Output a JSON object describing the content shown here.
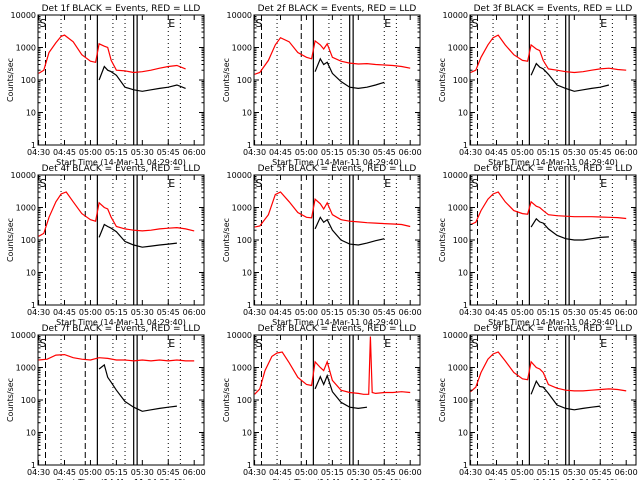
{
  "chart_data": [
    {
      "type": "line",
      "title": "Det 1f BLACK = Events, RED = LLD",
      "xlabel": "Start Time (14-Mar-11 04:29:40)",
      "ylabel": "Counts/sec",
      "x_ticks": [
        "04:30",
        "04:45",
        "05:00",
        "05:15",
        "05:30",
        "05:45",
        "06:00"
      ],
      "y_ticks": [
        "1",
        "10",
        "100",
        "1000",
        "10000"
      ],
      "ylim": [
        1,
        10000
      ],
      "y_scale": "log",
      "markers": [
        "S",
        "E"
      ],
      "series": [
        {
          "color": "#ff0000",
          "x": [
            "04:30",
            "04:33",
            "04:36",
            "04:40",
            "04:43",
            "04:45",
            "04:50",
            "04:55",
            "05:00",
            "05:03",
            "05:05",
            "05:08",
            "05:10",
            "05:12",
            "05:15",
            "05:20",
            "05:25",
            "05:30",
            "05:35",
            "05:40",
            "05:45",
            "05:50",
            "05:55"
          ],
          "y": [
            160,
            200,
            700,
            1400,
            2200,
            2400,
            1500,
            600,
            380,
            350,
            1300,
            1100,
            1000,
            400,
            200,
            190,
            170,
            180,
            200,
            230,
            260,
            280,
            220
          ]
        },
        {
          "color": "#000000",
          "x": [
            "05:05",
            "05:08",
            "05:10",
            "05:12",
            "05:15",
            "05:20",
            "05:25",
            "05:30",
            "05:35",
            "05:40",
            "05:45",
            "05:50",
            "05:55"
          ],
          "y": [
            100,
            260,
            200,
            180,
            140,
            60,
            50,
            45,
            50,
            55,
            60,
            70,
            55
          ]
        }
      ]
    },
    {
      "type": "line",
      "title": "Det 2f BLACK = Events, RED = LLD",
      "xlabel": "Start Time (14-Mar-11 04:29:40)",
      "ylabel": "Counts/sec",
      "x_ticks": [
        "04:30",
        "04:45",
        "05:00",
        "05:15",
        "05:30",
        "05:45",
        "06:00"
      ],
      "y_ticks": [
        "1",
        "10",
        "100",
        "1000",
        "10000"
      ],
      "ylim": [
        1,
        10000
      ],
      "y_scale": "log",
      "markers": [
        "S",
        "E"
      ],
      "series": [
        {
          "color": "#ff0000",
          "x": [
            "04:30",
            "04:33",
            "04:38",
            "04:42",
            "04:45",
            "04:50",
            "04:55",
            "05:00",
            "05:03",
            "05:05",
            "05:08",
            "05:10",
            "05:12",
            "05:15",
            "05:20",
            "05:25",
            "05:30",
            "05:35",
            "05:40",
            "05:45",
            "05:50",
            "05:55",
            "06:00"
          ],
          "y": [
            150,
            170,
            400,
            1200,
            2000,
            1500,
            700,
            500,
            450,
            1600,
            1200,
            900,
            1300,
            500,
            380,
            330,
            310,
            320,
            300,
            290,
            280,
            260,
            230
          ]
        },
        {
          "color": "#000000",
          "x": [
            "05:05",
            "05:08",
            "05:10",
            "05:12",
            "05:15",
            "05:20",
            "05:25",
            "05:30",
            "05:35",
            "05:40",
            "05:45"
          ],
          "y": [
            180,
            450,
            300,
            350,
            160,
            90,
            60,
            55,
            60,
            70,
            85
          ]
        }
      ]
    },
    {
      "type": "line",
      "title": "Det 3f BLACK = Events, RED = LLD",
      "xlabel": "Start Time (14-Mar-11 04:29:40)",
      "ylabel": "Counts/sec",
      "x_ticks": [
        "04:30",
        "04:45",
        "05:00",
        "05:15",
        "05:30",
        "05:45",
        "06:00"
      ],
      "y_ticks": [
        "1",
        "10",
        "100",
        "1000",
        "10000"
      ],
      "ylim": [
        1,
        10000
      ],
      "y_scale": "log",
      "markers": [
        "S",
        "E"
      ],
      "series": [
        {
          "color": "#ff0000",
          "x": [
            "04:30",
            "04:33",
            "04:36",
            "04:40",
            "04:43",
            "04:46",
            "04:50",
            "04:55",
            "05:00",
            "05:03",
            "05:05",
            "05:08",
            "05:10",
            "05:12",
            "05:15",
            "05:20",
            "05:25",
            "05:30",
            "05:35",
            "05:40",
            "05:45",
            "05:50",
            "05:55",
            "06:00"
          ],
          "y": [
            170,
            200,
            500,
            1200,
            2000,
            2400,
            1200,
            600,
            400,
            380,
            1200,
            900,
            800,
            400,
            220,
            200,
            180,
            170,
            180,
            200,
            220,
            230,
            210,
            200
          ]
        },
        {
          "color": "#000000",
          "x": [
            "05:05",
            "05:08",
            "05:10",
            "05:12",
            "05:15",
            "05:20",
            "05:25",
            "05:30",
            "05:35",
            "05:40",
            "05:45",
            "05:50"
          ],
          "y": [
            140,
            320,
            250,
            220,
            150,
            70,
            55,
            45,
            50,
            55,
            60,
            70
          ]
        }
      ]
    },
    {
      "type": "line",
      "title": "Det 4f BLACK = Events, RED = LLD",
      "xlabel": "Start Time (14-Mar-11 04:29:40)",
      "ylabel": "Counts/sec",
      "x_ticks": [
        "04:30",
        "04:45",
        "05:00",
        "05:15",
        "05:30",
        "05:45",
        "06:00"
      ],
      "y_ticks": [
        "1",
        "10",
        "100",
        "1000",
        "10000"
      ],
      "ylim": [
        1,
        10000
      ],
      "y_scale": "log",
      "markers": [
        "S",
        "E"
      ],
      "series": [
        {
          "color": "#ff0000",
          "x": [
            "04:30",
            "04:33",
            "04:36",
            "04:40",
            "04:43",
            "04:46",
            "04:50",
            "04:55",
            "05:00",
            "05:03",
            "05:05",
            "05:08",
            "05:10",
            "05:12",
            "05:15",
            "05:20",
            "05:25",
            "05:30",
            "05:35",
            "05:40",
            "05:45",
            "05:50",
            "05:55",
            "06:00"
          ],
          "y": [
            130,
            160,
            500,
            1500,
            2600,
            3000,
            1500,
            650,
            420,
            380,
            1400,
            1000,
            900,
            500,
            260,
            220,
            200,
            190,
            200,
            220,
            230,
            240,
            220,
            190
          ]
        },
        {
          "color": "#000000",
          "x": [
            "05:05",
            "05:08",
            "05:10",
            "05:12",
            "05:15",
            "05:20",
            "05:25",
            "05:30",
            "05:35",
            "05:40",
            "05:45",
            "05:50"
          ],
          "y": [
            120,
            300,
            260,
            230,
            180,
            90,
            70,
            60,
            65,
            70,
            75,
            80
          ]
        }
      ]
    },
    {
      "type": "line",
      "title": "Det 5f BLACK = Events, RED = LLD",
      "xlabel": "Start Time (14-Mar-11 04:29:40)",
      "ylabel": "Counts/sec",
      "x_ticks": [
        "04:30",
        "04:45",
        "05:00",
        "05:15",
        "05:30",
        "05:45",
        "06:00"
      ],
      "y_ticks": [
        "1",
        "10",
        "100",
        "1000",
        "10000"
      ],
      "ylim": [
        1,
        10000
      ],
      "y_scale": "log",
      "markers": [
        "S",
        "E"
      ],
      "series": [
        {
          "color": "#ff0000",
          "x": [
            "04:30",
            "04:33",
            "04:38",
            "04:42",
            "04:45",
            "04:50",
            "04:55",
            "05:00",
            "05:03",
            "05:05",
            "05:08",
            "05:10",
            "05:12",
            "05:15",
            "05:20",
            "05:25",
            "05:30",
            "05:35",
            "05:40",
            "05:45",
            "05:50",
            "05:55",
            "06:00"
          ],
          "y": [
            250,
            270,
            600,
            2500,
            3000,
            1500,
            700,
            500,
            480,
            1800,
            1300,
            900,
            1400,
            600,
            420,
            380,
            360,
            340,
            330,
            320,
            310,
            300,
            260
          ]
        },
        {
          "color": "#000000",
          "x": [
            "05:05",
            "05:08",
            "05:10",
            "05:12",
            "05:15",
            "05:20",
            "05:25",
            "05:30",
            "05:35",
            "05:40",
            "05:45"
          ],
          "y": [
            220,
            500,
            350,
            420,
            200,
            100,
            75,
            70,
            80,
            95,
            110
          ]
        }
      ]
    },
    {
      "type": "line",
      "title": "Det 6f BLACK = Events, RED = LLD",
      "xlabel": "Start Time (14-Mar-11 04:29:40)",
      "ylabel": "Counts/sec",
      "x_ticks": [
        "04:30",
        "04:45",
        "05:00",
        "05:15",
        "05:30",
        "05:45",
        "06:00"
      ],
      "y_ticks": [
        "1",
        "10",
        "100",
        "1000",
        "10000"
      ],
      "ylim": [
        1,
        10000
      ],
      "y_scale": "log",
      "markers": [
        "S",
        "E"
      ],
      "series": [
        {
          "color": "#ff0000",
          "x": [
            "04:30",
            "04:33",
            "04:36",
            "04:40",
            "04:43",
            "04:46",
            "04:50",
            "04:55",
            "05:00",
            "05:03",
            "05:05",
            "05:08",
            "05:10",
            "05:12",
            "05:15",
            "05:20",
            "05:25",
            "05:30",
            "05:35",
            "05:40",
            "05:45",
            "05:50",
            "05:55",
            "06:00"
          ],
          "y": [
            300,
            350,
            800,
            1800,
            2600,
            3000,
            1500,
            800,
            650,
            620,
            1500,
            1100,
            1000,
            800,
            600,
            560,
            540,
            520,
            520,
            520,
            510,
            500,
            490,
            460
          ]
        },
        {
          "color": "#000000",
          "x": [
            "05:05",
            "05:08",
            "05:10",
            "05:12",
            "05:15",
            "05:20",
            "05:25",
            "05:30",
            "05:35",
            "05:40",
            "05:45",
            "05:50"
          ],
          "y": [
            250,
            450,
            360,
            330,
            220,
            140,
            110,
            100,
            100,
            110,
            120,
            125
          ]
        }
      ]
    },
    {
      "type": "line",
      "title": "Det 7f BLACK = Events, RED = LLD",
      "xlabel": "Start Time (14-Mar-11 04:29:40)",
      "ylabel": "Counts/sec",
      "x_ticks": [
        "04:30",
        "04:45",
        "05:00",
        "05:15",
        "05:30",
        "05:45",
        "06:00"
      ],
      "y_ticks": [
        "1",
        "10",
        "100",
        "1000",
        "10000"
      ],
      "ylim": [
        1,
        10000
      ],
      "y_scale": "log",
      "markers": [
        "S",
        "E"
      ],
      "series": [
        {
          "color": "#ff0000",
          "x": [
            "04:30",
            "04:35",
            "04:40",
            "04:45",
            "04:50",
            "04:55",
            "05:00",
            "05:05",
            "05:10",
            "05:15",
            "05:20",
            "05:25",
            "05:30",
            "05:35",
            "05:40",
            "05:45",
            "05:50",
            "05:55",
            "06:00"
          ],
          "y": [
            1700,
            1800,
            2400,
            2500,
            2000,
            1800,
            1700,
            2000,
            1900,
            1700,
            1700,
            1600,
            1700,
            1600,
            1700,
            1600,
            1700,
            1600,
            1600
          ]
        },
        {
          "color": "#000000",
          "x": [
            "05:05",
            "05:08",
            "05:10",
            "05:12",
            "05:15",
            "05:20",
            "05:25",
            "05:30",
            "05:35",
            "05:40",
            "05:45",
            "05:50"
          ],
          "y": [
            900,
            1200,
            500,
            350,
            200,
            90,
            60,
            45,
            50,
            55,
            60,
            65
          ]
        }
      ]
    },
    {
      "type": "line",
      "title": "Det 8f BLACK = Events, RED = LLD",
      "xlabel": "Start Time (14-Mar-11 04:29:40)",
      "ylabel": "Counts/sec",
      "x_ticks": [
        "04:30",
        "04:45",
        "05:00",
        "05:15",
        "05:30",
        "05:45",
        "06:00"
      ],
      "y_ticks": [
        "1",
        "10",
        "100",
        "1000",
        "10000"
      ],
      "ylim": [
        1,
        10000
      ],
      "y_scale": "log",
      "markers": [
        "S",
        "E"
      ],
      "series": [
        {
          "color": "#ff0000",
          "x": [
            "04:30",
            "04:33",
            "04:36",
            "04:40",
            "04:43",
            "04:46",
            "04:50",
            "04:55",
            "05:00",
            "05:03",
            "05:05",
            "05:08",
            "05:10",
            "05:12",
            "05:15",
            "05:20",
            "05:25",
            "05:30",
            "05:33",
            "05:36",
            "05:37",
            "05:38",
            "05:40",
            "05:45",
            "05:50",
            "05:55",
            "06:00"
          ],
          "y": [
            150,
            220,
            800,
            2200,
            2800,
            3000,
            1400,
            500,
            300,
            280,
            1500,
            1000,
            800,
            1500,
            400,
            200,
            170,
            160,
            150,
            150,
            9000,
            170,
            160,
            170,
            170,
            180,
            170
          ]
        },
        {
          "color": "#000000",
          "x": [
            "05:05",
            "05:08",
            "05:10",
            "05:12",
            "05:15",
            "05:20",
            "05:25",
            "05:30",
            "05:35"
          ],
          "y": [
            220,
            520,
            300,
            560,
            180,
            85,
            60,
            55,
            60
          ]
        }
      ]
    },
    {
      "type": "line",
      "title": "Det 9f BLACK = Events, RED = LLD",
      "xlabel": "Start Time (14-Mar-11 04:29:40)",
      "ylabel": "Counts/sec",
      "x_ticks": [
        "04:30",
        "04:45",
        "05:00",
        "05:15",
        "05:30",
        "05:45",
        "06:00"
      ],
      "y_ticks": [
        "1",
        "10",
        "100",
        "1000",
        "10000"
      ],
      "ylim": [
        1,
        10000
      ],
      "y_scale": "log",
      "markers": [
        "S",
        "E"
      ],
      "series": [
        {
          "color": "#ff0000",
          "x": [
            "04:30",
            "04:33",
            "04:36",
            "04:40",
            "04:43",
            "04:46",
            "04:50",
            "04:55",
            "05:00",
            "05:03",
            "05:05",
            "05:08",
            "05:10",
            "05:12",
            "05:15",
            "05:20",
            "05:25",
            "05:30",
            "05:35",
            "05:40",
            "05:45",
            "05:50",
            "05:55",
            "06:00"
          ],
          "y": [
            180,
            250,
            700,
            1800,
            2600,
            3000,
            1600,
            700,
            450,
            420,
            1500,
            1000,
            900,
            700,
            300,
            230,
            200,
            190,
            190,
            200,
            210,
            220,
            210,
            190
          ]
        },
        {
          "color": "#000000",
          "x": [
            "05:05",
            "05:08",
            "05:10",
            "05:12",
            "05:15",
            "05:20",
            "05:25",
            "05:30",
            "05:35",
            "05:40",
            "05:45"
          ],
          "y": [
            150,
            380,
            260,
            250,
            160,
            70,
            55,
            50,
            55,
            60,
            65
          ]
        }
      ]
    }
  ]
}
